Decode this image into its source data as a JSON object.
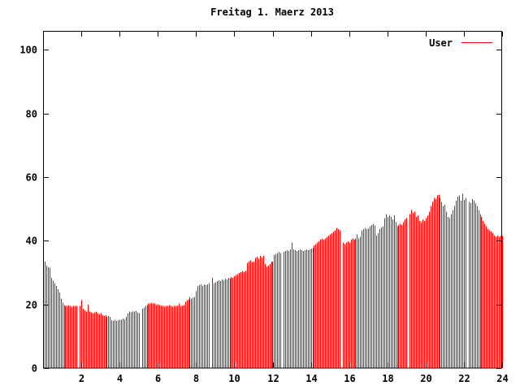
{
  "page": {
    "background": "#ffffff"
  },
  "chart": {
    "title": "Freitag 1. Maerz 2013",
    "legend": {
      "label": "User",
      "line_color": "#ff0000",
      "position": "top-right"
    },
    "axes": {
      "x": {
        "tick_labels": [
          "2",
          "4",
          "6",
          "8",
          "10",
          "12",
          "14",
          "16",
          "18",
          "20",
          "22",
          "24"
        ],
        "range": [
          0,
          24
        ]
      },
      "y": {
        "tick_labels": [
          "0",
          "20",
          "40",
          "60",
          "80",
          "100"
        ],
        "range": [
          0,
          106
        ]
      }
    },
    "colors": {
      "bar": "#ff0000",
      "axis": "#000000",
      "text": "#000000"
    }
  },
  "chart_data": {
    "type": "bar",
    "subtype": "impulses",
    "title": "Freitag 1. Maerz 2013",
    "xlabel": "",
    "ylabel": "",
    "x_unit": "hour of day",
    "xlim": [
      0,
      24
    ],
    "ylim": [
      0,
      106
    ],
    "x_ticks": [
      2,
      4,
      6,
      8,
      10,
      12,
      14,
      16,
      18,
      20,
      22,
      24
    ],
    "y_ticks": [
      0,
      20,
      40,
      60,
      80,
      100
    ],
    "grid": false,
    "legend_position": "top-right",
    "sample_interval_minutes": 5,
    "note": "288 samples at 5-minute intervals; zero values are missing-data gaps",
    "series": [
      {
        "name": "User",
        "color": "#ff0000",
        "x_start": 0.08333,
        "x_step": 0.08333,
        "values": [
          33.5,
          32.2,
          31.7,
          31.5,
          28.4,
          27.5,
          26.7,
          25.8,
          24.8,
          23.7,
          21.9,
          20.5,
          19.8,
          19.5,
          19.5,
          19.8,
          19.5,
          19.2,
          19.5,
          19.5,
          19.5,
          0,
          19.5,
          21.3,
          18.6,
          18.1,
          17.8,
          19.9,
          17.8,
          17.5,
          17.3,
          17.5,
          17.8,
          17.3,
          17.0,
          17.3,
          16.6,
          16.3,
          16.6,
          16.1,
          16.3,
          16.1,
          15.1,
          14.8,
          15.2,
          14.8,
          15.1,
          15.2,
          15.2,
          15.6,
          15.3,
          16.1,
          17.3,
          17.8,
          17.5,
          17.8,
          17.8,
          18.0,
          17.5,
          17.3,
          0,
          18.6,
          19.0,
          19.5,
          19.8,
          20.3,
          20.3,
          20.6,
          20.3,
          20.3,
          19.8,
          20.0,
          19.8,
          19.5,
          19.5,
          19.3,
          19.5,
          19.5,
          19.8,
          19.5,
          19.3,
          19.5,
          19.5,
          19.5,
          20.3,
          19.5,
          19.5,
          19.8,
          20.8,
          21.3,
          21.6,
          22.4,
          21.8,
          22.1,
          22.4,
          24.2,
          25.8,
          26.0,
          26.3,
          25.8,
          26.3,
          26.0,
          26.3,
          26.7,
          0,
          28.4,
          26.7,
          27.0,
          27.3,
          27.6,
          27.3,
          27.8,
          27.6,
          28.1,
          27.8,
          28.4,
          28.1,
          28.6,
          28.4,
          28.8,
          29.2,
          29.5,
          29.9,
          30.1,
          30.4,
          30.1,
          30.6,
          33.1,
          33.5,
          33.9,
          33.3,
          33.5,
          34.6,
          35.0,
          34.4,
          35.2,
          34.8,
          35.2,
          32.7,
          31.8,
          32.2,
          32.7,
          33.5,
          33.5,
          35.6,
          35.9,
          36.2,
          36.5,
          36.2,
          0,
          36.5,
          36.8,
          37.0,
          36.8,
          37.3,
          39.5,
          37.3,
          37.0,
          36.8,
          37.0,
          37.3,
          37.0,
          36.8,
          37.0,
          37.3,
          37.0,
          37.3,
          37.5,
          37.8,
          38.6,
          39.0,
          39.5,
          39.9,
          40.3,
          40.7,
          40.3,
          40.7,
          41.2,
          41.6,
          42.0,
          42.4,
          42.9,
          43.3,
          44.1,
          43.7,
          43.3,
          0,
          39.5,
          39.0,
          39.5,
          39.9,
          39.5,
          40.3,
          40.7,
          40.3,
          40.7,
          42.0,
          40.7,
          41.2,
          43.3,
          43.7,
          44.1,
          43.7,
          43.9,
          44.6,
          45.0,
          45.4,
          44.8,
          41.6,
          42.4,
          43.7,
          44.2,
          44.6,
          47.1,
          48.4,
          47.5,
          48.0,
          47.5,
          46.7,
          48.0,
          45.8,
          44.6,
          45.0,
          45.4,
          45.0,
          45.8,
          46.7,
          47.1,
          0,
          48.4,
          49.7,
          48.8,
          49.2,
          47.5,
          48.0,
          46.2,
          45.8,
          46.7,
          46.2,
          47.1,
          48.0,
          49.2,
          50.9,
          52.2,
          53.5,
          53.1,
          54.3,
          54.5,
          53.5,
          52.2,
          50.9,
          51.3,
          49.2,
          47.5,
          47.1,
          48.4,
          49.7,
          50.9,
          52.6,
          53.9,
          54.3,
          52.6,
          54.8,
          52.9,
          53.5,
          0,
          52.2,
          51.8,
          53.1,
          52.6,
          51.8,
          50.9,
          49.7,
          48.4,
          47.5,
          46.2,
          45.4,
          44.6,
          43.7,
          43.3,
          42.9,
          42.4,
          41.6,
          41.2,
          41.6,
          41.2,
          41.6,
          41.5
        ]
      }
    ]
  }
}
